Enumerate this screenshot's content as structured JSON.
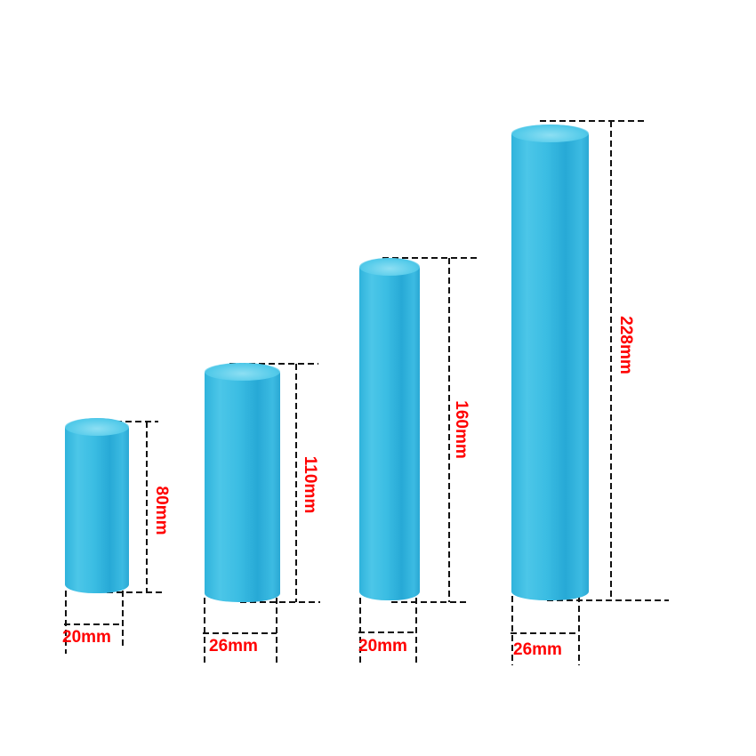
{
  "tube_color": "#3bbde3",
  "label_color": "#ff0000",
  "tubes": [
    {
      "length_label": "80mm",
      "diameter_label": "20mm"
    },
    {
      "length_label": "110mm",
      "diameter_label": "26mm"
    },
    {
      "length_label": "160mm",
      "diameter_label": "20mm"
    },
    {
      "length_label": "228mm",
      "diameter_label": "26mm"
    }
  ]
}
